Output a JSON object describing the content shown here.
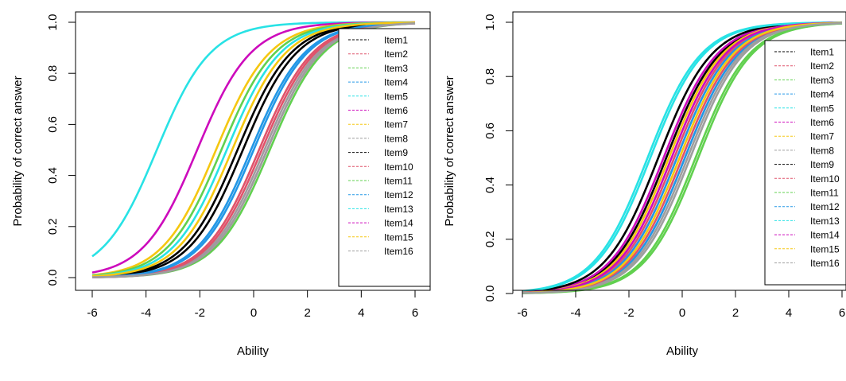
{
  "chart_data": [
    {
      "type": "line",
      "title": "",
      "xlabel": "Ability",
      "ylabel": "Probability of correct answer",
      "xlim": [
        -6,
        6
      ],
      "ylim": [
        0,
        1
      ],
      "x_ticks": [
        "-6",
        "-4",
        "-2",
        "0",
        "2",
        "4",
        "6"
      ],
      "y_ticks": [
        "0.0",
        "0.2",
        "0.4",
        "0.6",
        "0.8",
        "1.0"
      ],
      "grid": false,
      "legend_position": "top-right",
      "model": "logistic",
      "series": [
        {
          "name": "Item1",
          "color": "#000000",
          "difficulty": -0.6,
          "discrimination": 1.0
        },
        {
          "name": "Item2",
          "color": "#DF536B",
          "difficulty": 0.2,
          "discrimination": 1.0
        },
        {
          "name": "Item3",
          "color": "#61D04F",
          "difficulty": 0.6,
          "discrimination": 1.0
        },
        {
          "name": "Item4",
          "color": "#2297E6",
          "difficulty": -0.1,
          "discrimination": 1.0
        },
        {
          "name": "Item5",
          "color": "#28E2E5",
          "difficulty": -3.6,
          "discrimination": 1.0
        },
        {
          "name": "Item6",
          "color": "#CD0BBC",
          "difficulty": -2.1,
          "discrimination": 1.0
        },
        {
          "name": "Item7",
          "color": "#F5C710",
          "difficulty": -1.4,
          "discrimination": 1.0
        },
        {
          "name": "Item8",
          "color": "#9E9E9E",
          "difficulty": 0.4,
          "discrimination": 1.0
        },
        {
          "name": "Item9",
          "color": "#000000",
          "difficulty": -0.4,
          "discrimination": 1.0
        },
        {
          "name": "Item10",
          "color": "#DF536B",
          "difficulty": 0.3,
          "discrimination": 1.0
        },
        {
          "name": "Item11",
          "color": "#61D04F",
          "difficulty": -1.2,
          "discrimination": 1.0
        },
        {
          "name": "Item12",
          "color": "#2297E6",
          "difficulty": 0.0,
          "discrimination": 1.0
        },
        {
          "name": "Item13",
          "color": "#28E2E5",
          "difficulty": -1.0,
          "discrimination": 1.0
        },
        {
          "name": "Item14",
          "color": "#CD0BBC",
          "difficulty": 0.5,
          "discrimination": 1.0
        },
        {
          "name": "Item15",
          "color": "#F5C710",
          "difficulty": -0.8,
          "discrimination": 1.0
        },
        {
          "name": "Item16",
          "color": "#9E9E9E",
          "difficulty": 0.5,
          "discrimination": 1.0
        }
      ]
    },
    {
      "type": "line",
      "title": "",
      "xlabel": "Ability",
      "ylabel": "Probability of correct answer",
      "xlim": [
        -6,
        6
      ],
      "ylim": [
        0,
        1
      ],
      "x_ticks": [
        "-6",
        "-4",
        "-2",
        "0",
        "2",
        "4",
        "6"
      ],
      "y_ticks": [
        "0.0",
        "0.2",
        "0.4",
        "0.6",
        "0.8",
        "1.0"
      ],
      "grid": false,
      "legend_position": "top-right",
      "model": "logistic",
      "series": [
        {
          "name": "Item1",
          "color": "#000000",
          "difficulty": -0.6,
          "discrimination": 1.0
        },
        {
          "name": "Item2",
          "color": "#DF536B",
          "difficulty": -0.3,
          "discrimination": 1.0
        },
        {
          "name": "Item3",
          "color": "#61D04F",
          "difficulty": 0.5,
          "discrimination": 1.0
        },
        {
          "name": "Item4",
          "color": "#2297E6",
          "difficulty": 0.1,
          "discrimination": 1.0
        },
        {
          "name": "Item5",
          "color": "#28E2E5",
          "difficulty": -1.3,
          "discrimination": 1.0
        },
        {
          "name": "Item6",
          "color": "#CD0BBC",
          "difficulty": -0.7,
          "discrimination": 1.0
        },
        {
          "name": "Item7",
          "color": "#F5C710",
          "difficulty": -0.5,
          "discrimination": 1.0
        },
        {
          "name": "Item8",
          "color": "#9E9E9E",
          "difficulty": 0.2,
          "discrimination": 1.0
        },
        {
          "name": "Item9",
          "color": "#000000",
          "difficulty": -0.9,
          "discrimination": 1.0
        },
        {
          "name": "Item10",
          "color": "#DF536B",
          "difficulty": 0.0,
          "discrimination": 1.0
        },
        {
          "name": "Item11",
          "color": "#61D04F",
          "difficulty": 0.6,
          "discrimination": 1.0
        },
        {
          "name": "Item12",
          "color": "#2297E6",
          "difficulty": -0.2,
          "discrimination": 1.0
        },
        {
          "name": "Item13",
          "color": "#28E2E5",
          "difficulty": -1.2,
          "discrimination": 1.0
        },
        {
          "name": "Item14",
          "color": "#CD0BBC",
          "difficulty": -0.4,
          "discrimination": 1.0
        },
        {
          "name": "Item15",
          "color": "#F5C710",
          "difficulty": -0.1,
          "discrimination": 1.0
        },
        {
          "name": "Item16",
          "color": "#9E9E9E",
          "difficulty": 0.3,
          "discrimination": 1.0
        }
      ]
    }
  ]
}
